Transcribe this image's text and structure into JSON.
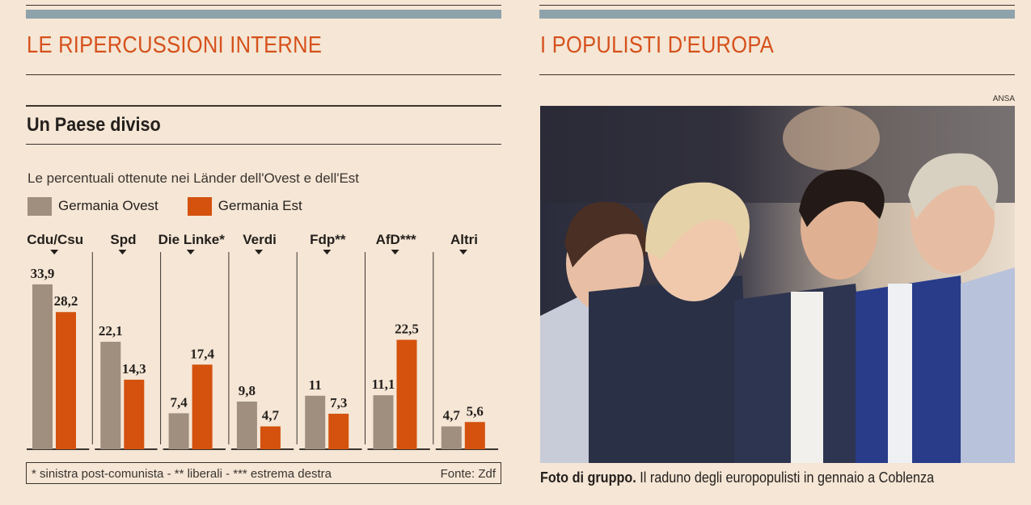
{
  "left": {
    "title": "LE RIPERCUSSIONI INTERNE",
    "subtitle": "Un Paese diviso",
    "description": "Le percentuali ottenute nei Länder dell'Ovest e dell'Est",
    "footnote": "* sinistra post-comunista - **  liberali - *** estrema destra",
    "source": "Fonte: Zdf"
  },
  "right": {
    "title": "I POPULISTI D'EUROPA",
    "credit": "ANSA",
    "caption_bold": "Foto di gruppo.",
    "caption": " Il raduno degli europopulisti in gennaio a Coblenza"
  },
  "colors": {
    "west": "#a08f7e",
    "east": "#d4520e",
    "accent": "#d6511c"
  },
  "chart_data": {
    "type": "bar",
    "title": "Un Paese diviso",
    "categories": [
      "Cdu/Csu",
      "Spd",
      "Die Linke*",
      "Verdi",
      "Fdp**",
      "AfD***",
      "Altri"
    ],
    "series": [
      {
        "name": "Germania Ovest",
        "values": [
          33.9,
          22.1,
          7.4,
          9.8,
          11,
          11.1,
          4.7
        ],
        "labels": [
          "33,9",
          "22,1",
          "7,4",
          "9,8",
          "11",
          "11,1",
          "4,7"
        ]
      },
      {
        "name": "Germania Est",
        "values": [
          28.2,
          14.3,
          17.4,
          4.7,
          7.3,
          22.5,
          5.6
        ],
        "labels": [
          "28,2",
          "14,3",
          "17,4",
          "4,7",
          "7,3",
          "22,5",
          "5,6"
        ]
      }
    ],
    "ylim": [
      0,
      35
    ],
    "grid": false,
    "legend": "top-left"
  }
}
